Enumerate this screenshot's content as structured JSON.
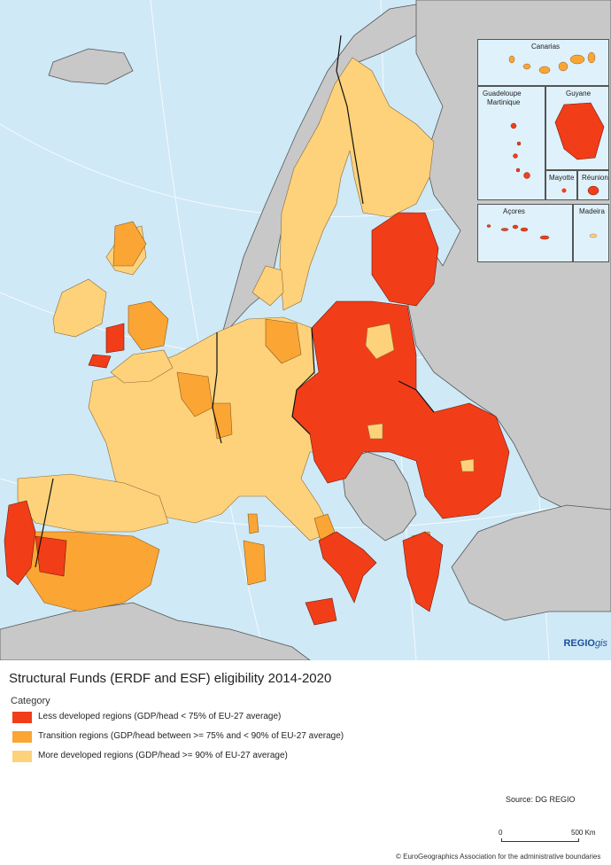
{
  "map": {
    "title": "Structural Funds (ERDF and ESF) eligibility 2014-2020",
    "brand_main": "REGIO",
    "brand_suffix": "gis",
    "colors": {
      "sea": "#cfe9f6",
      "non_eu_land": "#c8c8c8",
      "less_developed": "#f23d19",
      "transition": "#fba535",
      "more_developed": "#fdd27b"
    }
  },
  "insets": {
    "canarias": "Canarias",
    "guadeloupe": "Guadeloupe",
    "martinique": "Martinique",
    "guyane": "Guyane",
    "mayotte": "Mayotte",
    "reunion": "Réunion",
    "acores": "Açores",
    "madeira": "Madeira"
  },
  "legend": {
    "heading": "Category",
    "items": [
      {
        "label": "Less developed regions (GDP/head < 75% of EU-27 average)",
        "color": "#f23d19"
      },
      {
        "label": "Transition regions (GDP/head between >= 75% and < 90% of EU-27 average)",
        "color": "#fba535"
      },
      {
        "label": "More developed regions (GDP/head >= 90% of EU-27 average)",
        "color": "#fdd27b"
      }
    ]
  },
  "source": "Source: DG REGIO",
  "scale": {
    "zero": "0",
    "max": "500 Km"
  },
  "copyright": "© EuroGeographics Association for the administrative boundaries"
}
